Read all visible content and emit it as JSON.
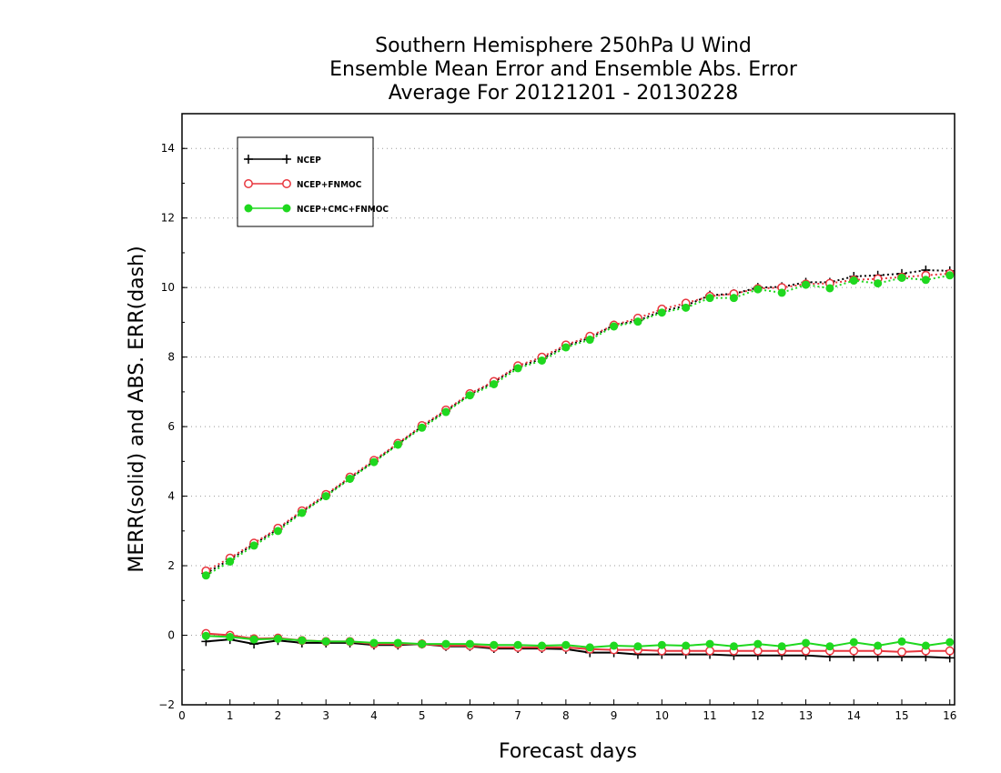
{
  "chart_data": {
    "type": "line",
    "title": [
      "Southern Hemisphere 250hPa U Wind",
      "Ensemble Mean Error and Ensemble Abs. Error",
      "Average For 20121201 - 20130228"
    ],
    "xlabel": "Forecast days",
    "ylabel": "MERR(solid) and ABS. ERR(dash)",
    "xlim": [
      0,
      16.1
    ],
    "ylim": [
      -2,
      15
    ],
    "xticks": [
      "0",
      "1",
      "2",
      "3",
      "4",
      "5",
      "6",
      "7",
      "8",
      "9",
      "10",
      "11",
      "12",
      "13",
      "14",
      "15",
      "16"
    ],
    "yticks": [
      "-2",
      "0",
      "2",
      "4",
      "6",
      "8",
      "10",
      "12",
      "14"
    ],
    "grid": "horizontal dotted",
    "legend_position": "top-left",
    "x": [
      0.5,
      1,
      1.5,
      2,
      2.5,
      3,
      3.5,
      4,
      4.5,
      5,
      5.5,
      6,
      6.5,
      7,
      7.5,
      8,
      8.5,
      9,
      9.5,
      10,
      10.5,
      11,
      11.5,
      12,
      12.5,
      13,
      13.5,
      14,
      14.5,
      15,
      15.5,
      16
    ],
    "series": [
      {
        "name": "NCEP",
        "color": "#000000",
        "marker": "plus",
        "abs_err": [
          1.78,
          2.18,
          2.62,
          3.05,
          3.55,
          4.02,
          4.52,
          5.0,
          5.5,
          6.0,
          6.45,
          6.92,
          7.28,
          7.72,
          7.95,
          8.32,
          8.55,
          8.92,
          9.05,
          9.32,
          9.48,
          9.78,
          9.82,
          10.0,
          10.02,
          10.15,
          10.15,
          10.32,
          10.35,
          10.4,
          10.5,
          10.48
        ],
        "mean_err": [
          -0.18,
          -0.12,
          -0.25,
          -0.15,
          -0.22,
          -0.22,
          -0.22,
          -0.28,
          -0.28,
          -0.25,
          -0.32,
          -0.32,
          -0.38,
          -0.38,
          -0.38,
          -0.4,
          -0.5,
          -0.5,
          -0.55,
          -0.55,
          -0.55,
          -0.55,
          -0.58,
          -0.58,
          -0.58,
          -0.58,
          -0.62,
          -0.62,
          -0.62,
          -0.62,
          -0.62,
          -0.65
        ]
      },
      {
        "name": "NCEP+FNMOC",
        "color": "#e8363e",
        "marker": "open-circle",
        "abs_err": [
          1.85,
          2.22,
          2.65,
          3.08,
          3.58,
          4.05,
          4.55,
          5.03,
          5.52,
          6.03,
          6.48,
          6.95,
          7.3,
          7.75,
          8.0,
          8.35,
          8.6,
          8.92,
          9.12,
          9.38,
          9.55,
          9.75,
          9.82,
          9.97,
          10.0,
          10.1,
          10.12,
          10.22,
          10.25,
          10.3,
          10.35,
          10.4
        ],
        "mean_err": [
          0.05,
          0.0,
          -0.1,
          -0.08,
          -0.15,
          -0.18,
          -0.18,
          -0.25,
          -0.25,
          -0.25,
          -0.3,
          -0.3,
          -0.35,
          -0.35,
          -0.35,
          -0.35,
          -0.4,
          -0.42,
          -0.42,
          -0.45,
          -0.45,
          -0.45,
          -0.45,
          -0.45,
          -0.45,
          -0.45,
          -0.45,
          -0.45,
          -0.45,
          -0.48,
          -0.45,
          -0.45
        ]
      },
      {
        "name": "NCEP+CMC+FNMOC",
        "color": "#1fd81f",
        "marker": "filled-circle",
        "abs_err": [
          1.72,
          2.12,
          2.58,
          3.0,
          3.52,
          4.0,
          4.5,
          4.98,
          5.48,
          5.97,
          6.42,
          6.9,
          7.22,
          7.68,
          7.9,
          8.28,
          8.5,
          8.88,
          9.02,
          9.28,
          9.42,
          9.7,
          9.7,
          9.95,
          9.85,
          10.08,
          9.98,
          10.2,
          10.12,
          10.28,
          10.22,
          10.35
        ],
        "mean_err": [
          -0.02,
          -0.05,
          -0.12,
          -0.1,
          -0.15,
          -0.18,
          -0.18,
          -0.22,
          -0.22,
          -0.25,
          -0.25,
          -0.25,
          -0.28,
          -0.28,
          -0.3,
          -0.28,
          -0.35,
          -0.3,
          -0.32,
          -0.28,
          -0.3,
          -0.25,
          -0.32,
          -0.25,
          -0.32,
          -0.22,
          -0.32,
          -0.2,
          -0.3,
          -0.18,
          -0.3,
          -0.2
        ]
      }
    ]
  }
}
